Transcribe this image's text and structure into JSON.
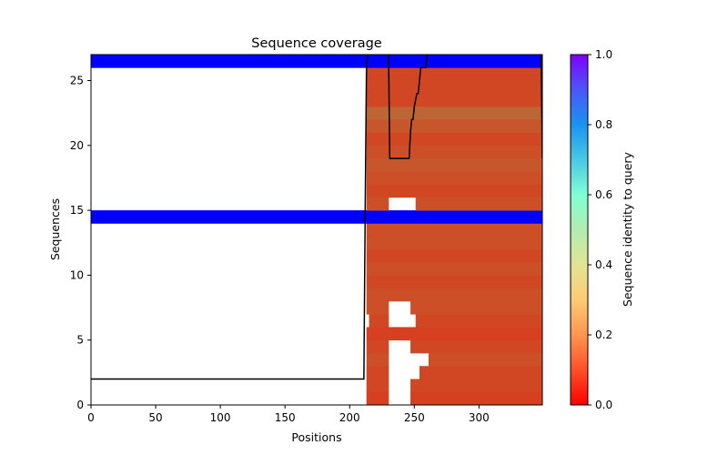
{
  "chart_data": {
    "type": "heatmap",
    "title": "Sequence coverage",
    "xlabel": "Positions",
    "ylabel": "Sequences",
    "xlim": [
      0,
      349
    ],
    "ylim": [
      0,
      27
    ],
    "xticks": [
      0,
      50,
      100,
      150,
      200,
      250,
      300
    ],
    "yticks": [
      0,
      5,
      10,
      15,
      20,
      25
    ],
    "grid": false,
    "colorbar": {
      "label": "Sequence identity to query",
      "colormap": "rainbow_r",
      "range": [
        0,
        1
      ],
      "ticks": [
        "0.0",
        "0.2",
        "0.4",
        "0.6",
        "0.8",
        "1.0"
      ]
    },
    "rows": [
      {
        "row": 0,
        "segments": [
          [
            213,
            230,
            0.08
          ],
          [
            247,
            349,
            0.08
          ]
        ]
      },
      {
        "row": 1,
        "segments": [
          [
            213,
            230,
            0.09
          ],
          [
            247,
            349,
            0.09
          ]
        ]
      },
      {
        "row": 2,
        "segments": [
          [
            213,
            230,
            0.09
          ],
          [
            254,
            349,
            0.09
          ]
        ]
      },
      {
        "row": 3,
        "segments": [
          [
            213,
            230,
            0.1
          ],
          [
            261,
            349,
            0.1
          ]
        ]
      },
      {
        "row": 4,
        "segments": [
          [
            213,
            230,
            0.09
          ],
          [
            247,
            349,
            0.09
          ]
        ]
      },
      {
        "row": 5,
        "segments": [
          [
            213,
            349,
            0.08
          ]
        ]
      },
      {
        "row": 6,
        "segments": [
          [
            215,
            230,
            0.09
          ],
          [
            251,
            349,
            0.09
          ]
        ]
      },
      {
        "row": 7,
        "segments": [
          [
            213,
            230,
            0.1
          ],
          [
            247,
            349,
            0.1
          ]
        ]
      },
      {
        "row": 8,
        "segments": [
          [
            213,
            349,
            0.1
          ]
        ]
      },
      {
        "row": 9,
        "segments": [
          [
            213,
            349,
            0.09
          ]
        ]
      },
      {
        "row": 10,
        "segments": [
          [
            213,
            349,
            0.1
          ]
        ]
      },
      {
        "row": 11,
        "segments": [
          [
            213,
            349,
            0.09
          ]
        ]
      },
      {
        "row": 12,
        "segments": [
          [
            213,
            349,
            0.1
          ]
        ]
      },
      {
        "row": 13,
        "segments": [
          [
            213,
            349,
            0.1
          ]
        ]
      },
      {
        "row": 14,
        "segments": [
          [
            0,
            349,
            1.0
          ]
        ]
      },
      {
        "row": 15,
        "segments": [
          [
            213,
            230,
            0.1
          ],
          [
            251,
            349,
            0.1
          ]
        ]
      },
      {
        "row": 16,
        "segments": [
          [
            213,
            349,
            0.09
          ]
        ]
      },
      {
        "row": 17,
        "segments": [
          [
            213,
            349,
            0.1
          ]
        ]
      },
      {
        "row": 18,
        "segments": [
          [
            213,
            349,
            0.11
          ]
        ]
      },
      {
        "row": 19,
        "segments": [
          [
            213,
            349,
            0.1
          ]
        ]
      },
      {
        "row": 20,
        "segments": [
          [
            213,
            349,
            0.09
          ]
        ]
      },
      {
        "row": 21,
        "segments": [
          [
            213,
            349,
            0.11
          ]
        ]
      },
      {
        "row": 22,
        "segments": [
          [
            213,
            349,
            0.13
          ]
        ]
      },
      {
        "row": 23,
        "segments": [
          [
            213,
            349,
            0.09
          ]
        ]
      },
      {
        "row": 24,
        "segments": [
          [
            213,
            349,
            0.09
          ]
        ]
      },
      {
        "row": 25,
        "segments": [
          [
            213,
            349,
            0.09
          ]
        ]
      },
      {
        "row": 26,
        "segments": [
          [
            0,
            349,
            1.0
          ]
        ]
      }
    ],
    "coverage_line": {
      "x": [
        0,
        211,
        212,
        213,
        214,
        215,
        215,
        230,
        231,
        246,
        247,
        248,
        249,
        250,
        252,
        253,
        254,
        255,
        256,
        257,
        258,
        259,
        260,
        261,
        262,
        347,
        348,
        349
      ],
      "y": [
        2,
        2,
        15,
        26,
        27,
        28,
        28,
        28,
        19,
        19,
        21,
        22,
        22,
        23,
        24,
        24,
        25,
        26,
        26,
        26,
        26,
        26,
        27,
        28,
        28,
        28,
        27,
        19
      ]
    }
  }
}
